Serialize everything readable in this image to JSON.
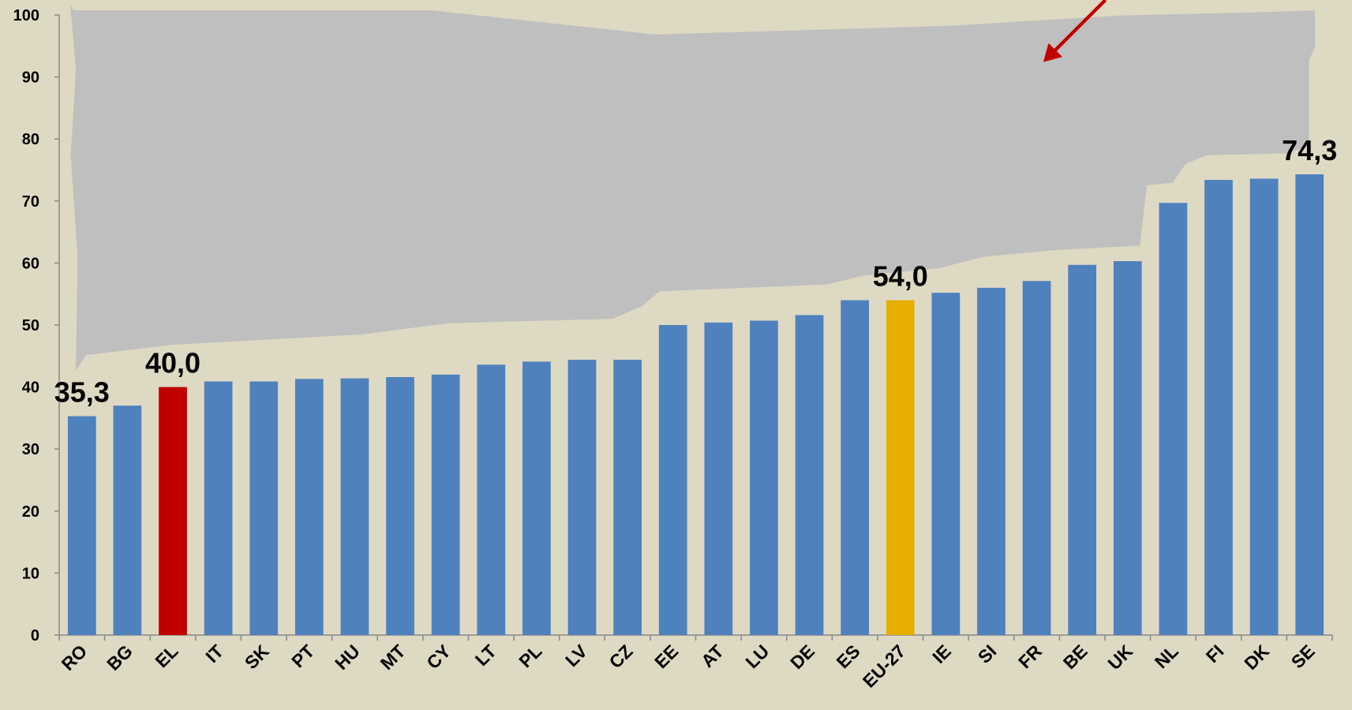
{
  "chart_data": {
    "type": "bar",
    "categories": [
      "RO",
      "BG",
      "EL",
      "IT",
      "SK",
      "PT",
      "HU",
      "MT",
      "CY",
      "LT",
      "PL",
      "LV",
      "CZ",
      "EE",
      "AT",
      "LU",
      "DE",
      "ES",
      "EU-27",
      "IE",
      "SI",
      "FR",
      "BE",
      "UK",
      "NL",
      "FI",
      "DK",
      "SE"
    ],
    "values": [
      35.3,
      37.0,
      40.0,
      40.9,
      40.9,
      41.3,
      41.4,
      41.6,
      42.0,
      43.6,
      44.1,
      44.4,
      44.4,
      50.0,
      50.4,
      50.7,
      51.6,
      54.0,
      54.0,
      55.2,
      56.0,
      57.1,
      59.7,
      60.3,
      69.7,
      73.4,
      73.6,
      74.3
    ],
    "value_labels": [
      "35,3",
      null,
      "40,0",
      null,
      null,
      null,
      null,
      null,
      null,
      null,
      null,
      null,
      null,
      null,
      null,
      null,
      null,
      null,
      "54,0",
      null,
      null,
      null,
      null,
      null,
      null,
      null,
      null,
      "74,3"
    ],
    "colors": [
      "#4f81bd",
      "#4f81bd",
      "#c00000",
      "#4f81bd",
      "#4f81bd",
      "#4f81bd",
      "#4f81bd",
      "#4f81bd",
      "#4f81bd",
      "#4f81bd",
      "#4f81bd",
      "#4f81bd",
      "#4f81bd",
      "#4f81bd",
      "#4f81bd",
      "#4f81bd",
      "#4f81bd",
      "#4f81bd",
      "#e6ae00",
      "#4f81bd",
      "#4f81bd",
      "#4f81bd",
      "#4f81bd",
      "#4f81bd",
      "#4f81bd",
      "#4f81bd",
      "#4f81bd",
      "#4f81bd"
    ],
    "ylim": [
      0,
      100
    ],
    "yticks": [
      0,
      10,
      20,
      30,
      40,
      50,
      60,
      70,
      80,
      90,
      100
    ],
    "grid": false
  }
}
